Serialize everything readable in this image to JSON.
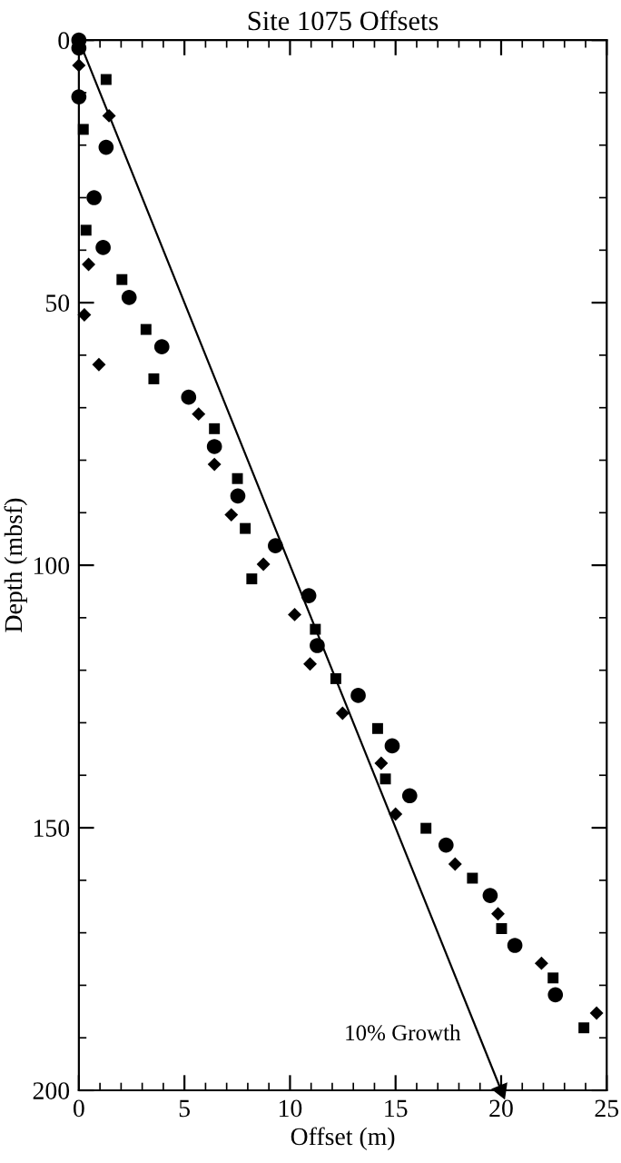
{
  "chart_data": {
    "type": "scatter",
    "title": "Site 1075 Offsets",
    "xlabel": "Offset (m)",
    "ylabel": "Depth (mbsf)",
    "xlim": [
      0,
      25
    ],
    "ylim": [
      200,
      0
    ],
    "xticks": [
      0,
      5,
      10,
      15,
      20,
      25
    ],
    "yticks": [
      0,
      50,
      100,
      150,
      200
    ],
    "grid": false,
    "legend": false,
    "series": [
      {
        "type": "scatter",
        "marker": "circle",
        "color": "#000000",
        "x": [
          0,
          0,
          0,
          1.29,
          0.72,
          1.15,
          2.38,
          3.93,
          5.2,
          6.42,
          7.53,
          9.31,
          10.89,
          11.29,
          13.23,
          14.84,
          15.67,
          17.39,
          19.48,
          20.65,
          22.57
        ],
        "values": [
          0,
          1.5,
          10.8,
          20.4,
          30.0,
          39.5,
          49.0,
          58.4,
          68.0,
          77.4,
          86.8,
          96.3,
          105.8,
          115.3,
          124.8,
          134.4,
          143.9,
          153.3,
          162.9,
          172.4,
          181.8
        ]
      },
      {
        "type": "scatter",
        "marker": "square",
        "color": "#000000",
        "x": [
          1.29,
          0.21,
          0.34,
          2.04,
          3.18,
          3.55,
          6.42,
          7.51,
          7.88,
          8.19,
          11.2,
          12.17,
          14.15,
          14.52,
          16.44,
          18.64,
          20.02,
          22.46,
          23.92
        ],
        "values": [
          7.5,
          17.0,
          36.2,
          45.6,
          55.1,
          64.5,
          74.0,
          83.5,
          93.0,
          102.6,
          112.2,
          121.6,
          131.1,
          140.7,
          150.1,
          159.6,
          169.2,
          178.6,
          188.1
        ]
      },
      {
        "type": "scatter",
        "marker": "diamond",
        "color": "#000000",
        "x": [
          0,
          1.43,
          0.46,
          0.26,
          0.95,
          5.67,
          6.42,
          7.22,
          8.74,
          10.22,
          10.95,
          12.49,
          14.32,
          15.0,
          17.82,
          19.85,
          21.91,
          24.52
        ],
        "values": [
          4.8,
          14.4,
          42.7,
          52.3,
          61.8,
          71.2,
          80.8,
          90.4,
          99.8,
          109.4,
          118.8,
          128.2,
          137.7,
          147.4,
          156.9,
          166.4,
          175.8,
          185.3
        ]
      },
      {
        "type": "line",
        "marker": "triangle",
        "line_style": "solid",
        "color": "#000000",
        "x": [
          0,
          20
        ],
        "values": [
          0,
          200
        ]
      }
    ],
    "annotations": [
      {
        "text": "10% Growth",
        "x": 20,
        "y": 200
      }
    ]
  }
}
